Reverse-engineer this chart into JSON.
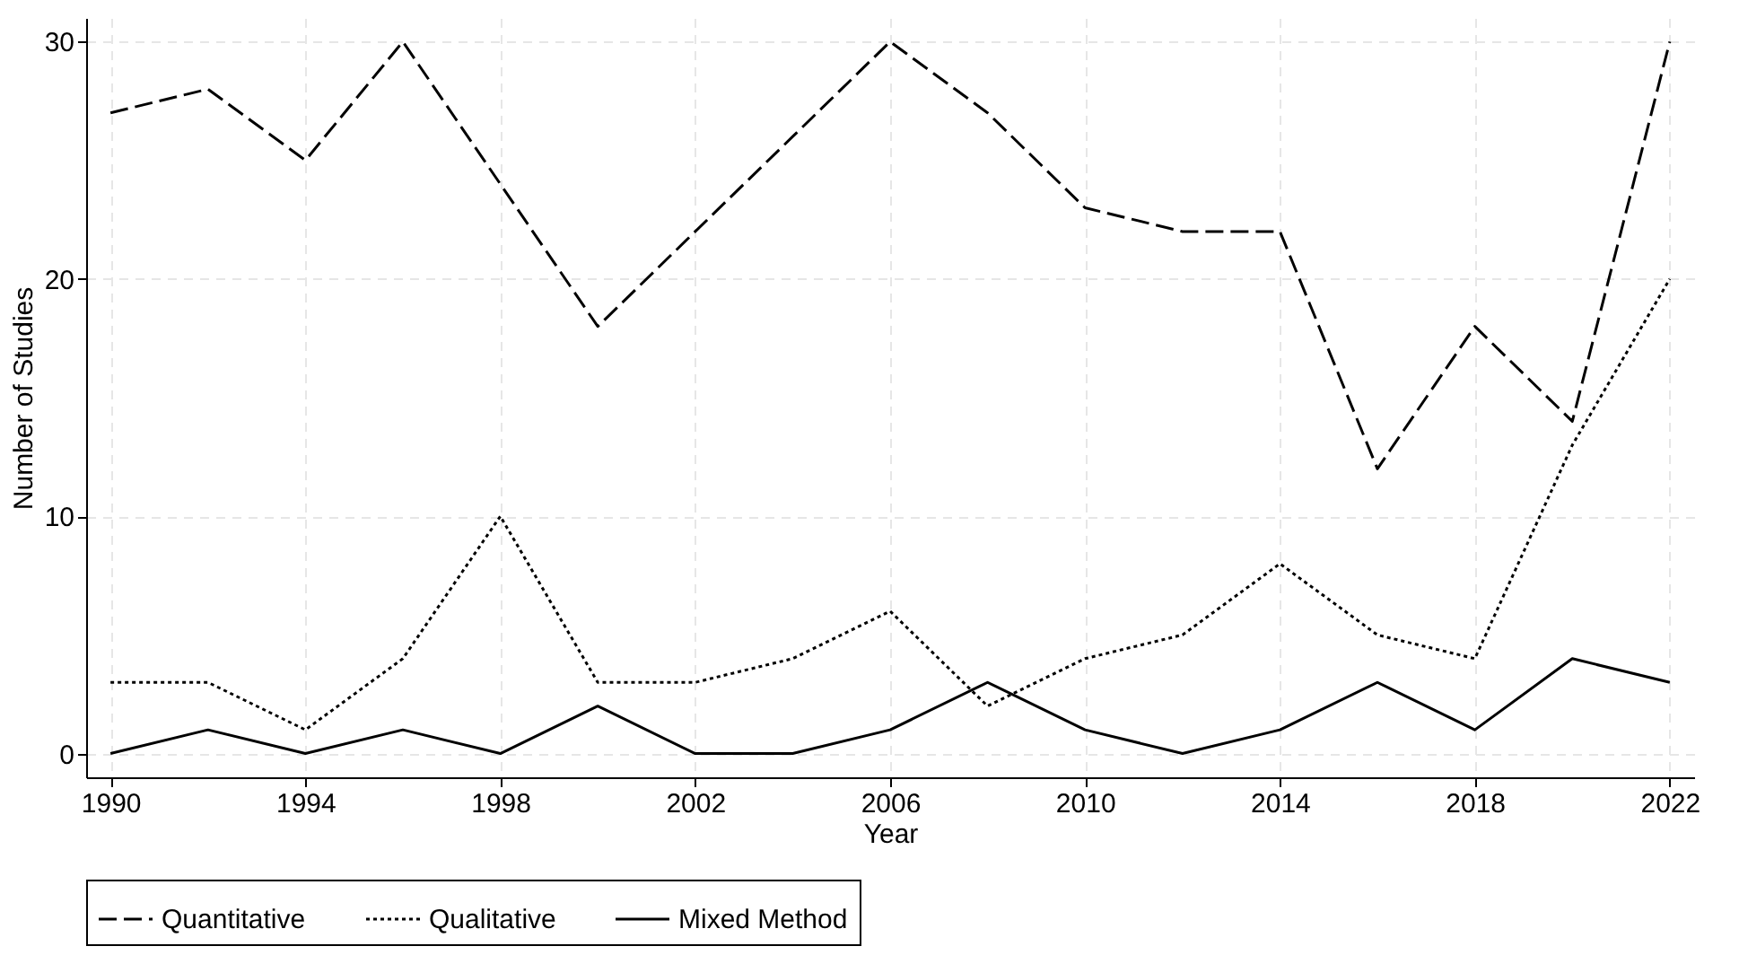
{
  "chart_data": {
    "type": "line",
    "xlabel": "Year",
    "ylabel": "Number of Studies",
    "x": [
      1990,
      1992,
      1994,
      1996,
      1998,
      2000,
      2002,
      2004,
      2006,
      2008,
      2010,
      2012,
      2014,
      2016,
      2018,
      2020,
      2022
    ],
    "series": [
      {
        "name": "Quantitative",
        "color": "#000000",
        "line_style": "dashed",
        "values": [
          27,
          28,
          25,
          30,
          24,
          18,
          22,
          26,
          30,
          27,
          23,
          22,
          22,
          12,
          18,
          14,
          30
        ]
      },
      {
        "name": "Qualitative",
        "color": "#000000",
        "line_style": "dotted",
        "values": [
          3,
          3,
          1,
          4,
          10,
          3,
          3,
          4,
          6,
          2,
          4,
          5,
          8,
          5,
          4,
          13,
          20
        ]
      },
      {
        "name": "Mixed Method",
        "color": "#000000",
        "line_style": "solid",
        "values": [
          0,
          1,
          0,
          1,
          0,
          2,
          0,
          0,
          1,
          3,
          1,
          0,
          1,
          3,
          1,
          4,
          3
        ]
      }
    ],
    "xlim": [
      1989.5,
      2022.5
    ],
    "xticks": [
      1990,
      1994,
      1998,
      2002,
      2006,
      2010,
      2014,
      2018,
      2022
    ],
    "ylim": [
      -1,
      31
    ],
    "yticks": [
      0,
      10,
      20,
      30
    ],
    "grid": true,
    "legend": "bottom"
  }
}
